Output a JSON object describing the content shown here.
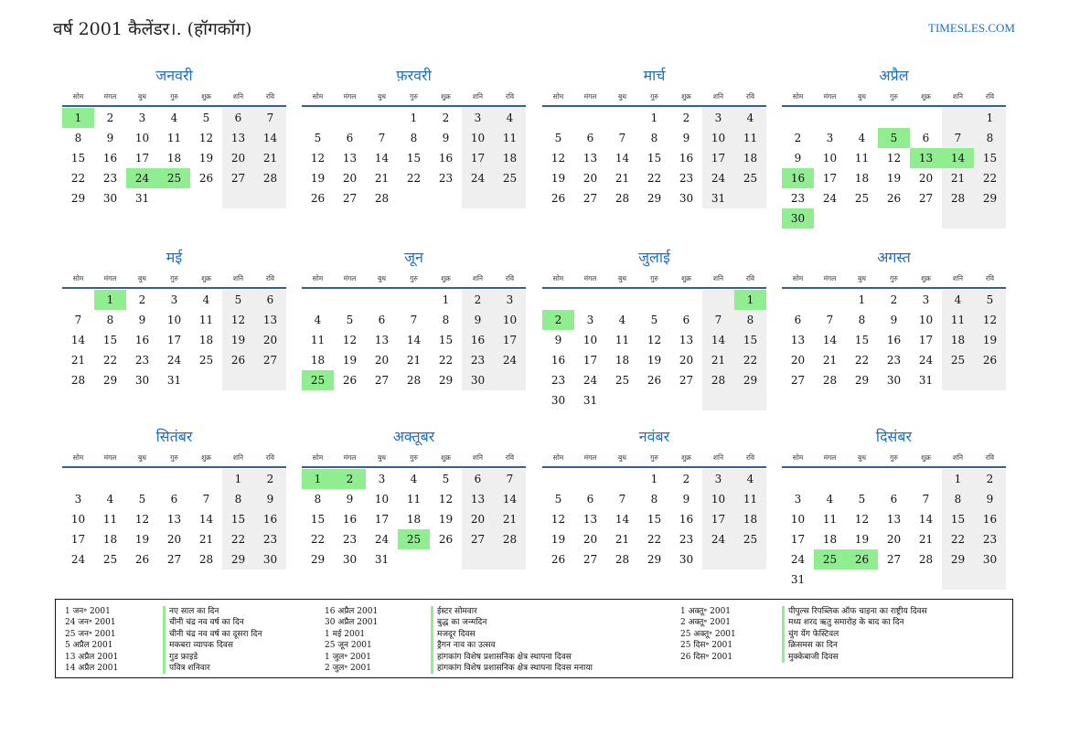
{
  "header": {
    "title": "वर्ष 2001 कैलेंडर।. (हॉगकॉग)",
    "site": "TIMESLES.COM"
  },
  "weekdays": [
    "सोम",
    "मंगल",
    "बुध",
    "गुरु",
    "शुक्र",
    "शनि",
    "रवि"
  ],
  "colors": {
    "accent": "#1f6fbf",
    "holiday": "#90ee90",
    "weekend": "#efefef",
    "rule": "#355f8f"
  },
  "months": [
    {
      "name": "जनवरी",
      "offset": 0,
      "days": 31,
      "holidays": [
        1,
        24,
        25
      ]
    },
    {
      "name": "फ़रवरी",
      "offset": 3,
      "days": 28,
      "holidays": []
    },
    {
      "name": "मार्च",
      "offset": 3,
      "days": 31,
      "holidays": []
    },
    {
      "name": "अप्रैल",
      "offset": 6,
      "days": 30,
      "holidays": [
        5,
        13,
        14,
        16,
        30
      ]
    },
    {
      "name": "मई",
      "offset": 1,
      "days": 31,
      "holidays": [
        1
      ]
    },
    {
      "name": "जून",
      "offset": 4,
      "days": 30,
      "holidays": [
        25
      ]
    },
    {
      "name": "जुलाई",
      "offset": 6,
      "days": 31,
      "holidays": [
        1,
        2
      ]
    },
    {
      "name": "अगस्त",
      "offset": 2,
      "days": 31,
      "holidays": []
    },
    {
      "name": "सितंबर",
      "offset": 5,
      "days": 30,
      "holidays": []
    },
    {
      "name": "अक्तूबर",
      "offset": 0,
      "days": 31,
      "holidays": [
        1,
        2,
        25
      ]
    },
    {
      "name": "नवंबर",
      "offset": 3,
      "days": 30,
      "holidays": []
    },
    {
      "name": "दिसंबर",
      "offset": 5,
      "days": 31,
      "holidays": [
        25,
        26
      ]
    }
  ],
  "legend": {
    "col1_dates": [
      "1 जन॰ 2001",
      "24 जन॰ 2001",
      "25 जन॰ 2001",
      "5 अप्रैल 2001",
      "13 अप्रैल 2001",
      "14 अप्रैल 2001"
    ],
    "col1_names": [
      "नए साल का दिन",
      "चीनी चंद्र नव वर्ष का दिन",
      "चीनी चंद्र नव वर्ष का दूसरा दिन",
      "मकबरा व्यापक दिवस",
      "गुड फ्राइडे",
      "पवित्र शनिवार"
    ],
    "col2_dates": [
      "16 अप्रैल 2001",
      "30 अप्रैल 2001",
      "1 मई 2001",
      "25 जून 2001",
      "1 जुल॰ 2001",
      "2 जुल॰ 2001"
    ],
    "col2_names": [
      "ईस्टर सोमवार",
      "बुद्ध का जन्मदिन",
      "मजदूर दिवस",
      "ड्रैगन नाव का उत्सव",
      "हांगकांग विशेष प्रशासनिक क्षेत्र स्थापना दिवस",
      "हांगकांग विशेष प्रशासनिक क्षेत्र स्थापना दिवस मनाया"
    ],
    "col3_dates": [
      "1 अक्तू॰ 2001",
      "2 अक्तू॰ 2001",
      "25 अक्तू॰ 2001",
      "25 दिस॰ 2001",
      "26 दिस॰ 2001"
    ],
    "col3_names": [
      "पीपुल्स रिपब्लिक ऑफ चाइना का राष्ट्रीय दिवस",
      "मध्य शरद ऋतु समारोह के बाद का दिन",
      "चुंग येंग फेस्टिवल",
      "क्रिसमस का दिन",
      "मुक्केबाजी दिवस"
    ]
  }
}
